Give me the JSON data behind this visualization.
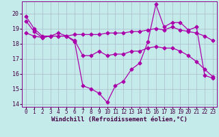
{
  "xlabel": "Windchill (Refroidissement éolien,°C)",
  "background_color": "#c5eaea",
  "grid_color": "#aabccc",
  "line_color": "#aa00aa",
  "xlim": [
    -0.5,
    23.5
  ],
  "ylim": [
    13.8,
    20.8
  ],
  "yticks": [
    14,
    15,
    16,
    17,
    18,
    19,
    20
  ],
  "xticks": [
    0,
    1,
    2,
    3,
    4,
    5,
    6,
    7,
    8,
    9,
    10,
    11,
    12,
    13,
    14,
    15,
    16,
    17,
    18,
    19,
    20,
    21,
    22,
    23
  ],
  "series1_x": [
    0,
    1,
    2,
    3,
    4,
    5,
    6,
    7,
    8,
    9,
    10,
    11,
    12,
    13,
    14,
    15,
    16,
    17,
    18,
    19,
    20,
    21,
    22,
    23
  ],
  "series1_y": [
    19.8,
    19.0,
    18.5,
    18.5,
    18.5,
    18.5,
    18.1,
    15.2,
    15.0,
    14.7,
    14.1,
    15.2,
    15.5,
    16.3,
    16.7,
    18.1,
    20.6,
    19.1,
    19.4,
    19.4,
    18.9,
    19.1,
    15.9,
    15.7
  ],
  "series2_x": [
    0,
    1,
    2,
    3,
    4,
    5,
    6,
    7,
    8,
    9,
    10,
    11,
    12,
    13,
    14,
    15,
    16,
    17,
    18,
    19,
    20,
    21,
    22,
    23
  ],
  "series2_y": [
    18.7,
    18.5,
    18.4,
    18.5,
    18.5,
    18.5,
    18.6,
    18.6,
    18.6,
    18.6,
    18.7,
    18.7,
    18.7,
    18.8,
    18.8,
    18.9,
    19.0,
    18.9,
    19.1,
    18.9,
    18.8,
    18.7,
    18.5,
    18.2
  ],
  "series3_x": [
    0,
    1,
    2,
    3,
    4,
    5,
    6,
    7,
    8,
    9,
    10,
    11,
    12,
    13,
    14,
    15,
    16,
    17,
    18,
    19,
    20,
    21,
    22,
    23
  ],
  "series3_y": [
    19.5,
    18.8,
    18.4,
    18.5,
    18.7,
    18.5,
    18.2,
    17.2,
    17.2,
    17.5,
    17.2,
    17.3,
    17.3,
    17.5,
    17.5,
    17.7,
    17.8,
    17.7,
    17.7,
    17.5,
    17.2,
    16.8,
    16.3,
    15.8
  ],
  "marker": "D",
  "markersize": 2.5,
  "linewidth": 0.9,
  "xlabel_fontsize": 6.5,
  "tick_fontsize": 5.5
}
